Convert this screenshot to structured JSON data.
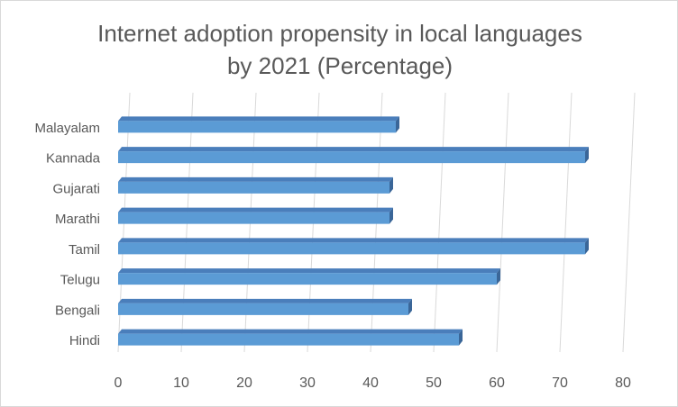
{
  "chart_data": {
    "type": "bar",
    "orientation": "horizontal",
    "title_lines": [
      "Internet adoption propensity in local languages",
      "by 2021 (Percentage)"
    ],
    "categories": [
      "Malayalam",
      "Kannada",
      "Gujarati",
      "Marathi",
      "Tamil",
      "Telugu",
      "Bengali",
      "Hindi"
    ],
    "values": [
      44,
      74,
      43,
      43,
      74,
      60,
      46,
      54
    ],
    "xlim": [
      0,
      80
    ],
    "x_ticks": [
      "0",
      "10",
      "20",
      "30",
      "40",
      "50",
      "60",
      "70",
      "80"
    ],
    "grid": true,
    "style": "3d",
    "colors": {
      "bar": "#5b9bd5",
      "bar_top": "#4a7ebb",
      "bar_side": "#3a6698",
      "grid": "#d9d9d9",
      "text": "#595959"
    }
  }
}
